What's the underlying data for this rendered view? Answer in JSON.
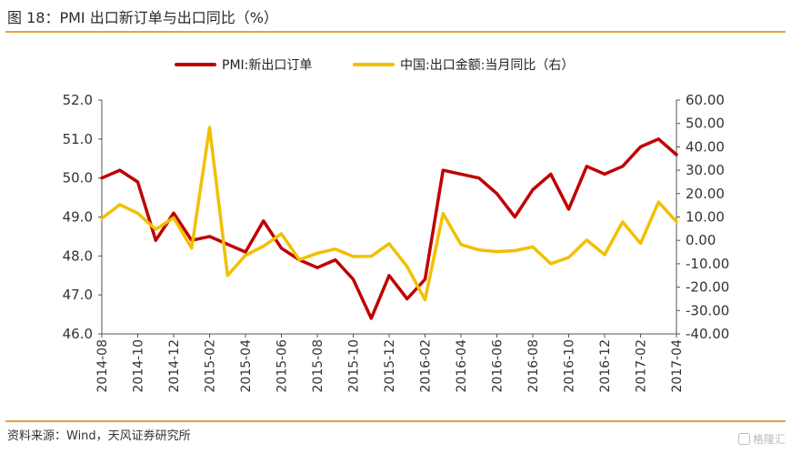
{
  "header": {
    "title": "图 18：PMI 出口新订单与出口同比（%）"
  },
  "footer": {
    "source": "资料来源：Wind，天风证券研究所",
    "watermark": "格隆汇"
  },
  "chart_data": {
    "type": "line",
    "title": "图 18：PMI 出口新订单与出口同比（%）",
    "x": [
      "2014-08",
      "2014-09",
      "2014-10",
      "2014-11",
      "2014-12",
      "2015-01",
      "2015-02",
      "2015-03",
      "2015-04",
      "2015-05",
      "2015-06",
      "2015-07",
      "2015-08",
      "2015-09",
      "2015-10",
      "2015-11",
      "2015-12",
      "2016-01",
      "2016-02",
      "2016-03",
      "2016-04",
      "2016-05",
      "2016-06",
      "2016-07",
      "2016-08",
      "2016-09",
      "2016-10",
      "2016-11",
      "2016-12",
      "2017-01",
      "2017-02",
      "2017-03",
      "2017-04"
    ],
    "xticks": [
      "2014-08",
      "2014-10",
      "2014-12",
      "2015-02",
      "2015-04",
      "2015-06",
      "2015-08",
      "2015-10",
      "2015-12",
      "2016-02",
      "2016-04",
      "2016-06",
      "2016-08",
      "2016-10",
      "2016-12",
      "2017-02",
      "2017-04"
    ],
    "series": [
      {
        "name": "PMI:新出口订单",
        "axis": "left",
        "color": "#c00000",
        "values": [
          50.0,
          50.2,
          49.9,
          48.4,
          49.1,
          48.4,
          48.5,
          48.3,
          48.1,
          48.9,
          48.2,
          47.9,
          47.7,
          47.9,
          47.4,
          46.4,
          47.5,
          46.9,
          47.4,
          50.2,
          50.1,
          50.0,
          49.6,
          49.0,
          49.7,
          50.1,
          49.2,
          50.3,
          50.1,
          50.3,
          50.8,
          51.0,
          50.6
        ]
      },
      {
        "name": "中国:出口金额:当月同比（右）",
        "axis": "right",
        "color": "#f2c000",
        "values": [
          9.4,
          15.3,
          11.6,
          4.7,
          9.7,
          -3.3,
          48.3,
          -15.0,
          -6.4,
          -2.5,
          2.8,
          -8.3,
          -5.5,
          -3.7,
          -6.9,
          -6.8,
          -1.4,
          -11.2,
          -25.4,
          11.5,
          -1.8,
          -4.1,
          -4.8,
          -4.4,
          -2.8,
          -10.0,
          -7.3,
          0.1,
          -6.1,
          7.9,
          -1.3,
          16.4,
          8.0
        ]
      }
    ],
    "y_left": {
      "min": 46.0,
      "max": 52.0,
      "ticks": [
        "46.0",
        "47.0",
        "48.0",
        "49.0",
        "50.0",
        "51.0",
        "52.0"
      ]
    },
    "y_right": {
      "min": -40,
      "max": 60,
      "ticks": [
        "-40.00",
        "-30.00",
        "-20.00",
        "-10.00",
        "0.00",
        "10.00",
        "20.00",
        "30.00",
        "40.00",
        "50.00",
        "60.00"
      ]
    },
    "legend_position": "top-center",
    "grid": false
  }
}
